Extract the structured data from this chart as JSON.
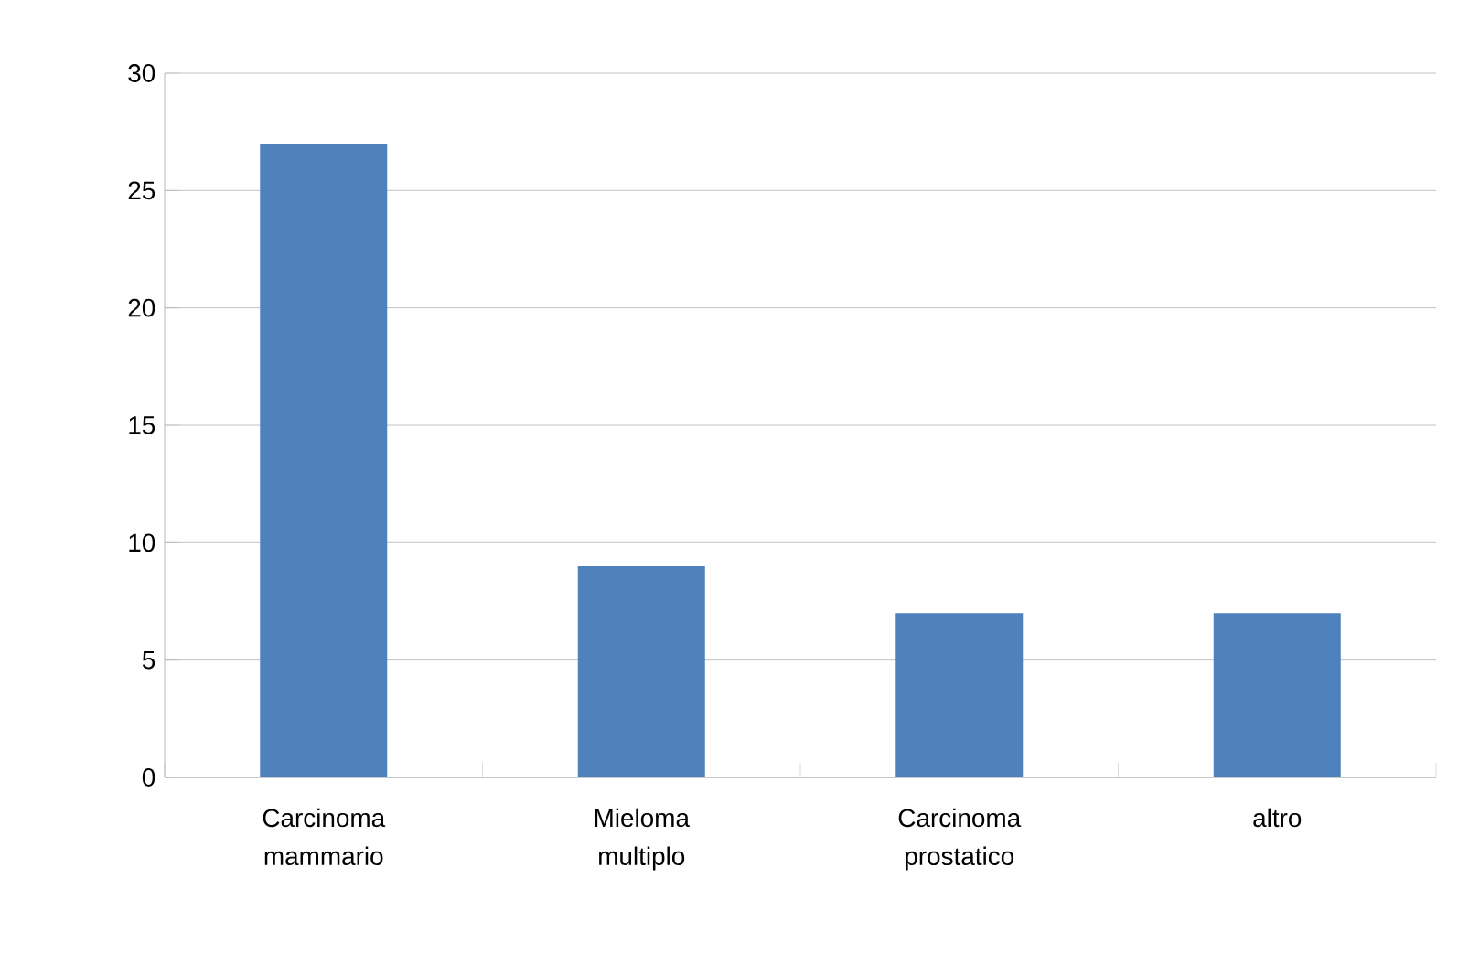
{
  "chart_data": {
    "type": "bar",
    "categories": [
      "Carcinoma mammario",
      "Mieloma multiplo",
      "Carcinoma prostatico",
      "altro"
    ],
    "values": [
      27,
      9,
      7,
      7
    ],
    "color": "#4f81bd",
    "ylim": [
      0,
      30
    ],
    "yticks": [
      0,
      5,
      10,
      15,
      20,
      25,
      30
    ],
    "grid": "y"
  }
}
